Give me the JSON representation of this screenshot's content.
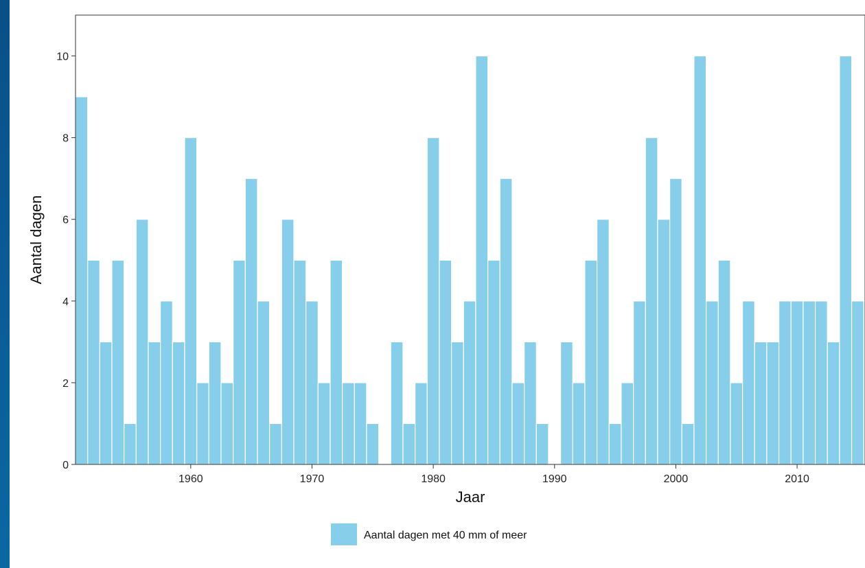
{
  "colors": {
    "bar": "#87ceeb",
    "bar_stroke": "#ffffff",
    "axis": "#333333",
    "background": "#ffffff"
  },
  "chart_data": {
    "type": "bar",
    "title": "",
    "xlabel": "Jaar",
    "ylabel": "Aantal dagen",
    "x": [
      1951,
      1952,
      1953,
      1954,
      1955,
      1956,
      1957,
      1958,
      1959,
      1960,
      1961,
      1962,
      1963,
      1964,
      1965,
      1966,
      1967,
      1968,
      1969,
      1970,
      1971,
      1972,
      1973,
      1974,
      1975,
      1976,
      1977,
      1978,
      1979,
      1980,
      1981,
      1982,
      1983,
      1984,
      1985,
      1986,
      1987,
      1988,
      1989,
      1990,
      1991,
      1992,
      1993,
      1994,
      1995,
      1996,
      1997,
      1998,
      1999,
      2000,
      2001,
      2002,
      2003,
      2004,
      2005,
      2006,
      2007,
      2008,
      2009,
      2010,
      2011,
      2012,
      2013,
      2014,
      2015
    ],
    "series": [
      {
        "name": "Aantal dagen met 40 mm of meer",
        "values": [
          9,
          5,
          3,
          5,
          1,
          6,
          3,
          4,
          3,
          8,
          2,
          3,
          2,
          5,
          7,
          4,
          1,
          6,
          5,
          4,
          2,
          5,
          2,
          2,
          1,
          0,
          3,
          1,
          2,
          8,
          5,
          3,
          4,
          10,
          5,
          7,
          2,
          3,
          1,
          0,
          3,
          2,
          5,
          6,
          1,
          2,
          4,
          8,
          6,
          7,
          1,
          10,
          4,
          5,
          2,
          4,
          3,
          3,
          4,
          4,
          4,
          4,
          3,
          10,
          4
        ]
      }
    ],
    "xlim": [
      1950.5,
      2015.6
    ],
    "ylim": [
      0,
      11
    ],
    "x_ticks": [
      1960,
      1970,
      1980,
      1990,
      2000,
      2010
    ],
    "y_ticks": [
      0,
      2,
      4,
      6,
      8,
      10
    ],
    "legend_position": "bottom",
    "grid": false
  }
}
